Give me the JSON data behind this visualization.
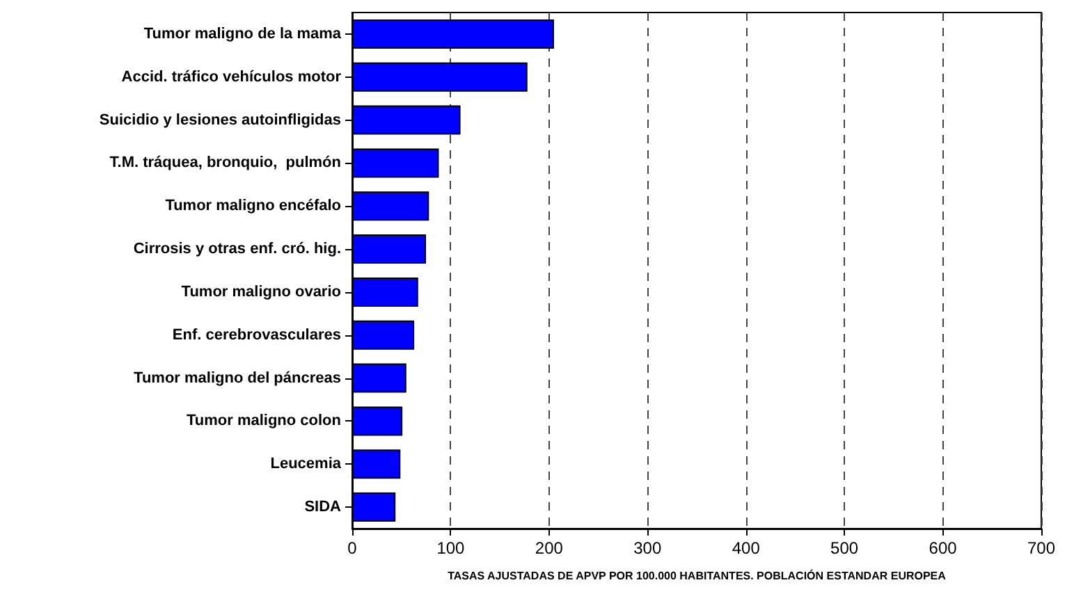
{
  "chart_data": {
    "type": "bar",
    "orientation": "horizontal",
    "xlabel": "TASAS AJUSTADAS DE APVP POR 100.000 HABITANTES. POBLACIÓN ESTANDAR EUROPEA",
    "categories": [
      "Tumor maligno de la mama",
      "Accid. tráfico vehículos motor",
      "Suicidio y lesiones autoinfligidas",
      "T.M. tráquea, bronquio,  pulmón",
      "Tumor maligno encéfalo",
      "Cirrosis y otras enf. cró. hig.",
      "Tumor maligno ovario",
      "Enf. cerebrovasculares",
      "Tumor maligno del páncreas",
      "Tumor maligno colon",
      "Leucemia",
      "SIDA"
    ],
    "values": [
      205,
      178,
      110,
      88,
      78,
      75,
      67,
      63,
      55,
      51,
      49,
      44
    ],
    "color": "#0000ff",
    "xlim": [
      0,
      700
    ],
    "xticks": [
      0,
      100,
      200,
      300,
      400,
      500,
      600,
      700
    ],
    "grid": "x"
  }
}
